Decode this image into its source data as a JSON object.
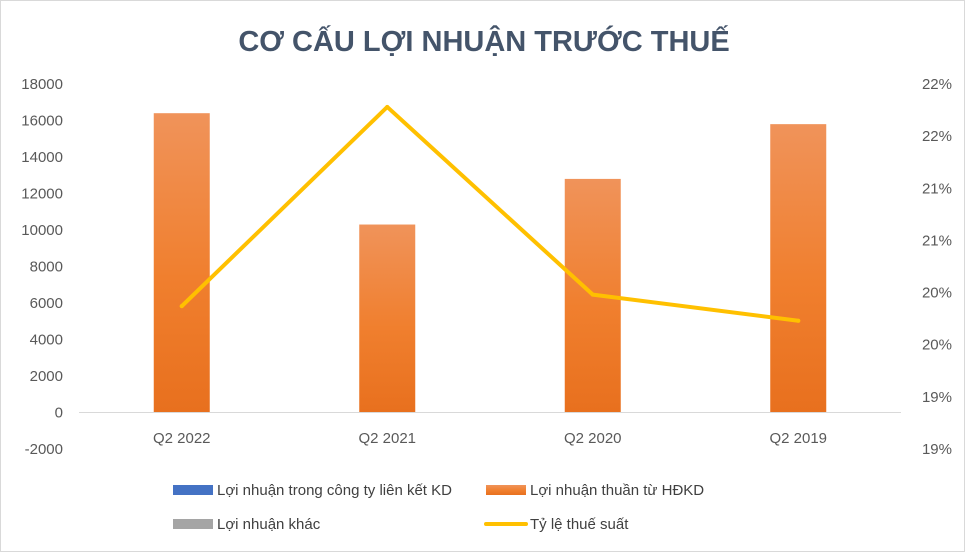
{
  "chart_data": {
    "type": "bar",
    "title": "CƠ CẤU LỢI NHUẬN TRƯỚC THUẾ",
    "categories": [
      "Q2 2022",
      "Q2 2021",
      "Q2 2020",
      "Q2 2019"
    ],
    "series": [
      {
        "name": "Lợi nhuận trong công ty liên kết KD",
        "type": "bar",
        "axis": "left",
        "color": "#4472c4",
        "values": [
          0,
          0,
          0,
          0
        ]
      },
      {
        "name": "Lợi nhuận thuần từ HĐKD",
        "type": "bar",
        "axis": "left",
        "color": "#ed7d31",
        "values": [
          16400,
          10300,
          12800,
          15800
        ]
      },
      {
        "name": "Lợi nhuận khác",
        "type": "bar",
        "axis": "left",
        "color": "#a5a5a5",
        "values": [
          0,
          0,
          0,
          0
        ]
      },
      {
        "name": "Tỷ lệ thuế suất",
        "type": "line",
        "axis": "right",
        "color": "#ffc000",
        "values": [
          19.87,
          21.78,
          19.98,
          19.73
        ]
      }
    ],
    "y_left": {
      "min": -2000,
      "max": 18000,
      "step": 2000,
      "ticks": [
        "-2000",
        "0",
        "2000",
        "4000",
        "6000",
        "8000",
        "10000",
        "12000",
        "14000",
        "16000",
        "18000"
      ]
    },
    "y_right": {
      "min": 18.5,
      "max": 22.0,
      "step": 0.5,
      "ticks": [
        "19%",
        "19%",
        "20%",
        "20%",
        "21%",
        "21%",
        "22%",
        "22%"
      ]
    },
    "grid": false,
    "legend_position": "bottom"
  }
}
